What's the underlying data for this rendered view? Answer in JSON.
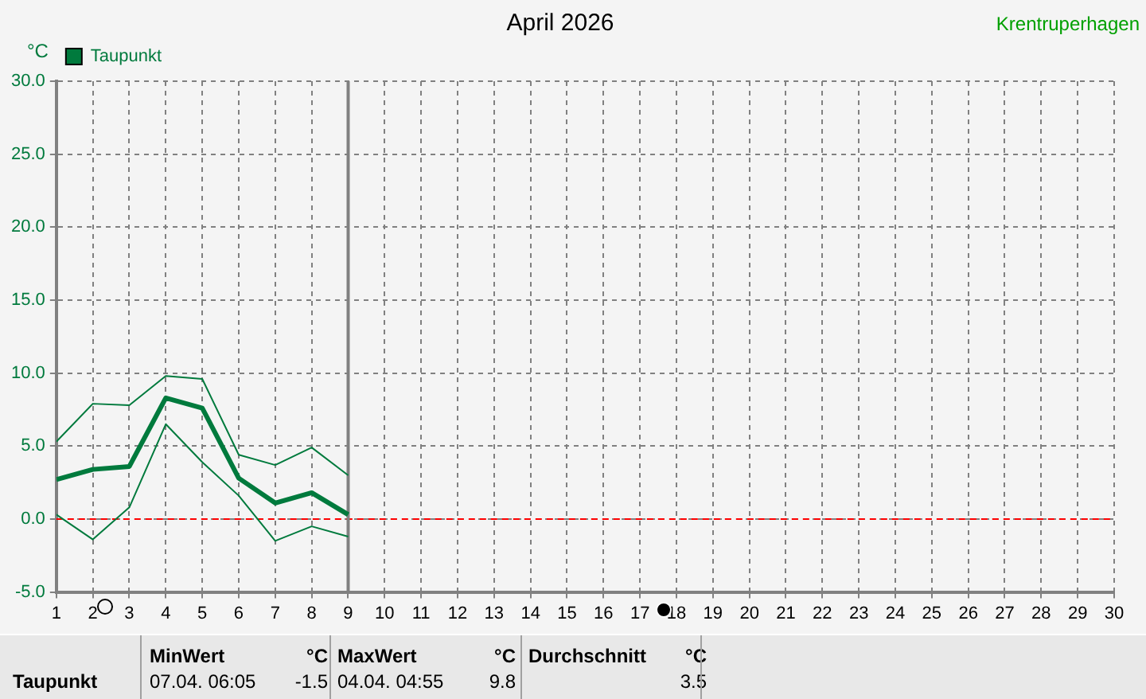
{
  "chart_data": {
    "type": "line",
    "title": "April 2026",
    "ylabel": "°C",
    "x": [
      1,
      2,
      3,
      4,
      5,
      6,
      7,
      8,
      9
    ],
    "series": [
      {
        "name": "Taupunkt",
        "color": "#007a3d",
        "values": [
          2.7,
          3.4,
          3.6,
          8.3,
          7.6,
          2.8,
          1.1,
          1.8,
          0.3
        ]
      },
      {
        "color": "#007a3d",
        "values": [
          5.3,
          7.9,
          7.8,
          9.8,
          9.6,
          4.4,
          3.7,
          4.9,
          3.0
        ]
      },
      {
        "color": "#007a3d",
        "values": [
          0.3,
          -1.4,
          0.8,
          6.5,
          3.9,
          1.6,
          -1.5,
          -0.5,
          -1.2
        ]
      }
    ],
    "xlim": [
      1,
      30
    ],
    "xticks": [
      1,
      2,
      3,
      4,
      5,
      6,
      7,
      8,
      9,
      10,
      11,
      12,
      13,
      14,
      15,
      16,
      17,
      18,
      19,
      20,
      21,
      22,
      23,
      24,
      25,
      26,
      27,
      28,
      29,
      30
    ],
    "ylim": [
      -5,
      30
    ],
    "yticks": [
      {
        "value": -5,
        "label": "-5.0"
      },
      {
        "value": 0,
        "label": "0.0"
      },
      {
        "value": 5,
        "label": "5.0"
      },
      {
        "value": 10,
        "label": "10.0"
      },
      {
        "value": 15,
        "label": "15.0"
      },
      {
        "value": 20,
        "label": "20.0"
      },
      {
        "value": 25,
        "label": "25.0"
      },
      {
        "value": 30,
        "label": "30.0"
      }
    ],
    "grid": true,
    "legend": "top left",
    "marker": "none",
    "line_style": "solid",
    "ref_lines": [
      {
        "axis": "y",
        "value": 0,
        "color": "#ff0000",
        "line_style": "dashed"
      },
      {
        "axis": "x",
        "value": 9,
        "color": "#808080",
        "line_style": "solid"
      }
    ],
    "annotations": [
      "Krentruperhagen",
      "Taupunkt",
      "MinWert",
      "°C",
      "07.04.  06:05",
      "-1.5",
      "MaxWert",
      "°C",
      "04.04.  04:55",
      "9.8",
      "Durchschnitt",
      "°C",
      "3.5"
    ]
  }
}
